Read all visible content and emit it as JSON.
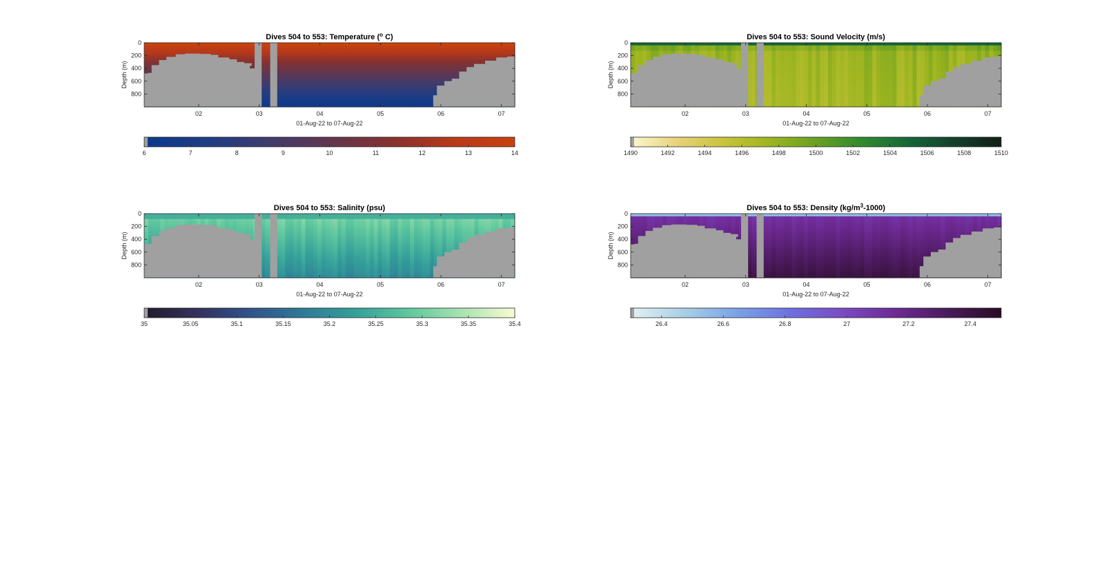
{
  "chart_data": [
    {
      "type": "heatmap",
      "title": "Dives 504 to 553: Temperature (° C)",
      "title_parts": {
        "before": "Dives 504 to 553: Temperature (",
        "sup": "o",
        "after": " C)"
      },
      "xlabel": "01-Aug-22 to 07-Aug-22",
      "ylabel": "Depth (m)",
      "x_ticks": [
        "02",
        "03",
        "04",
        "05",
        "06",
        "07"
      ],
      "y_ticks": [
        "0",
        "200",
        "400",
        "600",
        "800"
      ],
      "xlim_days": [
        1.1,
        7.22
      ],
      "ylim_depth": [
        0,
        1000
      ],
      "colorbar": {
        "min": 6,
        "max": 14,
        "ticks": [
          "6",
          "7",
          "8",
          "9",
          "10",
          "11",
          "12",
          "13",
          "14"
        ],
        "stops": [
          "#0b3a8c",
          "#1e3d84",
          "#3f3c6e",
          "#62364f",
          "#86312f",
          "#b8391a",
          "#c8420e"
        ]
      },
      "surface_value": 14,
      "deep_value": 6.3,
      "streaks": false
    },
    {
      "type": "heatmap",
      "title": "Dives 504 to 553: Sound Velocity (m/s)",
      "xlabel": "01-Aug-22 to 07-Aug-22",
      "ylabel": "Depth (m)",
      "x_ticks": [
        "02",
        "03",
        "04",
        "05",
        "06",
        "07"
      ],
      "y_ticks": [
        "0",
        "200",
        "400",
        "600",
        "800"
      ],
      "xlim_days": [
        1.1,
        7.22
      ],
      "ylim_depth": [
        0,
        1000
      ],
      "colorbar": {
        "min": 1490,
        "max": 1510,
        "ticks": [
          "1490",
          "1492",
          "1494",
          "1496",
          "1498",
          "1500",
          "1502",
          "1504",
          "1506",
          "1508",
          "1510"
        ],
        "stops": [
          "#fdf7d0",
          "#e8d27a",
          "#c9c43a",
          "#9db520",
          "#6aa022",
          "#2f8a2f",
          "#156638",
          "#163f2c",
          "#111f17"
        ]
      },
      "surface_value": 1504.5,
      "deep_value": 1497.8,
      "streaks": true
    },
    {
      "type": "heatmap",
      "title": "Dives 504 to 553: Salinity (psu)",
      "xlabel": "01-Aug-22 to 07-Aug-22",
      "ylabel": "Depth (m)",
      "x_ticks": [
        "02",
        "03",
        "04",
        "05",
        "06",
        "07"
      ],
      "y_ticks": [
        "0",
        "200",
        "400",
        "600",
        "800"
      ],
      "xlim_days": [
        1.1,
        7.22
      ],
      "ylim_depth": [
        0,
        1000
      ],
      "colorbar": {
        "min": 35,
        "max": 35.4,
        "ticks": [
          "35",
          "35.05",
          "35.1",
          "35.15",
          "35.2",
          "35.25",
          "35.3",
          "35.35",
          "35.4"
        ],
        "stops": [
          "#231b2c",
          "#33305e",
          "#31538a",
          "#2e7a96",
          "#35a09a",
          "#5fc79e",
          "#a8e3b1",
          "#f9fbd2"
        ]
      },
      "surface_value": 35.3,
      "deep_value": 35.2,
      "streaks": true
    },
    {
      "type": "heatmap",
      "title": "Dives 504 to 553: Density (kg/m³-1000)",
      "title_parts": {
        "before": "Dives 504 to 553: Density (kg/m",
        "sup": "3",
        "after": "-1000)"
      },
      "xlabel": "01-Aug-22 to 07-Aug-22",
      "ylabel": "Depth (m)",
      "x_ticks": [
        "02",
        "03",
        "04",
        "05",
        "06",
        "07"
      ],
      "y_ticks": [
        "0",
        "200",
        "400",
        "600",
        "800"
      ],
      "xlim_days": [
        1.1,
        7.22
      ],
      "ylim_depth": [
        0,
        1000
      ],
      "colorbar": {
        "min": 26.3,
        "max": 27.5,
        "ticks": [
          "26.4",
          "26.6",
          "26.8",
          "27",
          "27.2",
          "27.4"
        ],
        "stops": [
          "#e4f1f3",
          "#a9cfe6",
          "#7aa3e6",
          "#6e71e0",
          "#7a4bc4",
          "#6e2a94",
          "#4a1a5c",
          "#2a0c24"
        ]
      },
      "surface_value": 26.6,
      "deep_value": 27.4,
      "streaks": true
    }
  ]
}
